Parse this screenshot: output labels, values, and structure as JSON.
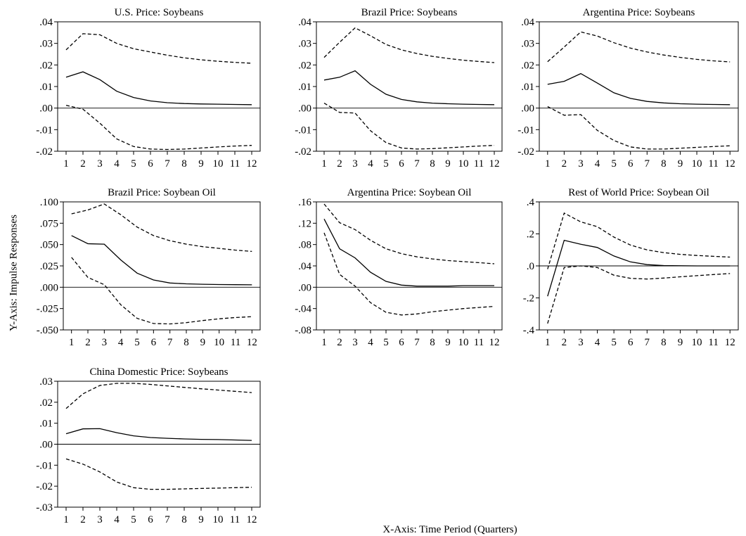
{
  "figure": {
    "y_axis_title": "Y-Axis: Impulse Responses",
    "x_axis_title": "X-Axis: Time Period (Quarters)"
  },
  "chart_data": [
    {
      "type": "line",
      "title": "U.S. Price: Soybeans",
      "x": [
        1,
        2,
        3,
        4,
        5,
        6,
        7,
        8,
        9,
        10,
        11,
        12
      ],
      "ylim": [
        -0.02,
        0.04
      ],
      "yticks": [
        ".04",
        ".03",
        ".02",
        ".01",
        ".00",
        "-.01",
        "-.02"
      ],
      "ytick_values": [
        0.04,
        0.03,
        0.02,
        0.01,
        0.0,
        -0.01,
        -0.02
      ],
      "series": [
        {
          "role": "upper",
          "style": "dashed",
          "values": [
            0.027,
            0.0345,
            0.034,
            0.03,
            0.0275,
            0.026,
            0.0245,
            0.0233,
            0.0224,
            0.0217,
            0.0212,
            0.0208
          ]
        },
        {
          "role": "response",
          "style": "solid",
          "values": [
            0.0143,
            0.0168,
            0.0132,
            0.0078,
            0.0049,
            0.0033,
            0.0025,
            0.0021,
            0.0019,
            0.0018,
            0.0017,
            0.0016
          ]
        },
        {
          "role": "lower",
          "style": "dashed",
          "values": [
            0.0013,
            -0.0005,
            -0.007,
            -0.0143,
            -0.0178,
            -0.019,
            -0.0192,
            -0.019,
            -0.0185,
            -0.018,
            -0.0176,
            -0.0173
          ]
        }
      ]
    },
    {
      "type": "line",
      "title": "Brazil Price: Soybeans",
      "x": [
        1,
        2,
        3,
        4,
        5,
        6,
        7,
        8,
        9,
        10,
        11,
        12
      ],
      "ylim": [
        -0.02,
        0.04
      ],
      "yticks": [
        ".04",
        ".03",
        ".02",
        ".01",
        ".00",
        "-.01",
        "-.02"
      ],
      "ytick_values": [
        0.04,
        0.03,
        0.02,
        0.01,
        0.0,
        -0.01,
        -0.02
      ],
      "series": [
        {
          "role": "upper",
          "style": "dashed",
          "values": [
            0.0235,
            0.0305,
            0.0372,
            0.0335,
            0.0295,
            0.027,
            0.0253,
            0.024,
            0.023,
            0.0222,
            0.0216,
            0.0211
          ]
        },
        {
          "role": "response",
          "style": "solid",
          "values": [
            0.013,
            0.0143,
            0.0173,
            0.011,
            0.0064,
            0.004,
            0.0029,
            0.0023,
            0.002,
            0.0018,
            0.0017,
            0.0016
          ]
        },
        {
          "role": "lower",
          "style": "dashed",
          "values": [
            0.0023,
            -0.002,
            -0.0023,
            -0.0105,
            -0.016,
            -0.0185,
            -0.019,
            -0.0188,
            -0.0184,
            -0.018,
            -0.0176,
            -0.0173
          ]
        }
      ]
    },
    {
      "type": "line",
      "title": "Argentina Price: Soybeans",
      "x": [
        1,
        2,
        3,
        4,
        5,
        6,
        7,
        8,
        9,
        10,
        11,
        12
      ],
      "ylim": [
        -0.02,
        0.04
      ],
      "yticks": [
        ".04",
        ".03",
        ".02",
        ".01",
        ".00",
        "-.01",
        "-.02"
      ],
      "ytick_values": [
        0.04,
        0.03,
        0.02,
        0.01,
        0.0,
        -0.01,
        -0.02
      ],
      "series": [
        {
          "role": "upper",
          "style": "dashed",
          "values": [
            0.0215,
            0.0283,
            0.0353,
            0.0334,
            0.0303,
            0.0278,
            0.026,
            0.0246,
            0.0235,
            0.0226,
            0.0219,
            0.0214
          ]
        },
        {
          "role": "response",
          "style": "solid",
          "values": [
            0.011,
            0.0124,
            0.016,
            0.0116,
            0.0071,
            0.0045,
            0.0031,
            0.0024,
            0.002,
            0.0018,
            0.0017,
            0.0016
          ]
        },
        {
          "role": "lower",
          "style": "dashed",
          "values": [
            0.0007,
            -0.0033,
            -0.003,
            -0.0103,
            -0.015,
            -0.018,
            -0.019,
            -0.019,
            -0.0186,
            -0.0182,
            -0.0178,
            -0.0175
          ]
        }
      ]
    },
    {
      "type": "line",
      "title": "Brazil Price: Soybean Oil",
      "x": [
        1,
        2,
        3,
        4,
        5,
        6,
        7,
        8,
        9,
        10,
        11,
        12
      ],
      "ylim": [
        -0.05,
        0.1
      ],
      "yticks": [
        ".100",
        ".075",
        ".050",
        ".025",
        ".000",
        "-.025",
        "-.050"
      ],
      "ytick_values": [
        0.1,
        0.075,
        0.05,
        0.025,
        0.0,
        -0.025,
        -0.05
      ],
      "series": [
        {
          "role": "upper",
          "style": "dashed",
          "values": [
            0.086,
            0.0905,
            0.0975,
            0.085,
            0.0705,
            0.0605,
            0.0545,
            0.0505,
            0.0475,
            0.0455,
            0.0435,
            0.042
          ]
        },
        {
          "role": "response",
          "style": "solid",
          "values": [
            0.0605,
            0.051,
            0.0505,
            0.032,
            0.0165,
            0.0085,
            0.005,
            0.004,
            0.0035,
            0.0032,
            0.003,
            0.0028
          ]
        },
        {
          "role": "lower",
          "style": "dashed",
          "values": [
            0.035,
            0.0115,
            0.003,
            -0.0205,
            -0.0365,
            -0.0425,
            -0.043,
            -0.0415,
            -0.039,
            -0.037,
            -0.0355,
            -0.0345
          ]
        }
      ]
    },
    {
      "type": "line",
      "title": "Argentina Price: Soybean Oil",
      "x": [
        1,
        2,
        3,
        4,
        5,
        6,
        7,
        8,
        9,
        10,
        11,
        12
      ],
      "ylim": [
        -0.08,
        0.16
      ],
      "yticks": [
        ".16",
        ".12",
        ".08",
        ".04",
        ".00",
        "-.04",
        "-.08"
      ],
      "ytick_values": [
        0.16,
        0.12,
        0.08,
        0.04,
        0.0,
        -0.04,
        -0.08
      ],
      "series": [
        {
          "role": "upper",
          "style": "dashed",
          "values": [
            0.156,
            0.121,
            0.108,
            0.088,
            0.072,
            0.063,
            0.057,
            0.053,
            0.05,
            0.048,
            0.046,
            0.044
          ]
        },
        {
          "role": "response",
          "style": "solid",
          "values": [
            0.128,
            0.072,
            0.055,
            0.028,
            0.011,
            0.004,
            0.002,
            0.002,
            0.002,
            0.003,
            0.003,
            0.003
          ]
        },
        {
          "role": "lower",
          "style": "dashed",
          "values": [
            0.102,
            0.024,
            0.002,
            -0.029,
            -0.047,
            -0.052,
            -0.05,
            -0.046,
            -0.043,
            -0.04,
            -0.038,
            -0.036
          ]
        }
      ]
    },
    {
      "type": "line",
      "title": "Rest of World Price: Soybean Oil",
      "x": [
        1,
        2,
        3,
        4,
        5,
        6,
        7,
        8,
        9,
        10,
        11,
        12
      ],
      "ylim": [
        -0.4,
        0.4
      ],
      "yticks": [
        ".4",
        ".2",
        ".0",
        "-.2",
        "-.4"
      ],
      "ytick_values": [
        0.4,
        0.2,
        0.0,
        -0.2,
        -0.4
      ],
      "series": [
        {
          "role": "upper",
          "style": "dashed",
          "values": [
            -0.02,
            0.33,
            0.275,
            0.245,
            0.18,
            0.13,
            0.1,
            0.083,
            0.072,
            0.065,
            0.06,
            0.055
          ]
        },
        {
          "role": "response",
          "style": "solid",
          "values": [
            -0.19,
            0.16,
            0.135,
            0.115,
            0.062,
            0.025,
            0.008,
            0.002,
            0.001,
            0.0,
            0.0,
            0.0
          ]
        },
        {
          "role": "lower",
          "style": "dashed",
          "values": [
            -0.36,
            -0.01,
            0.0,
            -0.01,
            -0.058,
            -0.078,
            -0.082,
            -0.076,
            -0.068,
            -0.061,
            -0.054,
            -0.048
          ]
        }
      ]
    },
    {
      "type": "line",
      "title": "China Domestic Price: Soybeans",
      "x": [
        1,
        2,
        3,
        4,
        5,
        6,
        7,
        8,
        9,
        10,
        11,
        12
      ],
      "ylim": [
        -0.03,
        0.03
      ],
      "yticks": [
        ".03",
        ".02",
        ".01",
        ".00",
        "-.01",
        "-.02",
        "-.03"
      ],
      "ytick_values": [
        0.03,
        0.02,
        0.01,
        0.0,
        -0.01,
        -0.02,
        -0.03
      ],
      "series": [
        {
          "role": "upper",
          "style": "dashed",
          "values": [
            0.017,
            0.024,
            0.028,
            0.029,
            0.029,
            0.0285,
            0.0278,
            0.0271,
            0.0264,
            0.0258,
            0.0252,
            0.0246
          ]
        },
        {
          "role": "response",
          "style": "solid",
          "values": [
            0.005,
            0.0073,
            0.0074,
            0.0055,
            0.004,
            0.0032,
            0.0028,
            0.0025,
            0.0023,
            0.0022,
            0.002,
            0.0018
          ]
        },
        {
          "role": "lower",
          "style": "dashed",
          "values": [
            -0.007,
            -0.0095,
            -0.0132,
            -0.018,
            -0.0207,
            -0.0215,
            -0.0215,
            -0.0213,
            -0.0211,
            -0.0209,
            -0.0207,
            -0.0205
          ]
        }
      ]
    }
  ]
}
